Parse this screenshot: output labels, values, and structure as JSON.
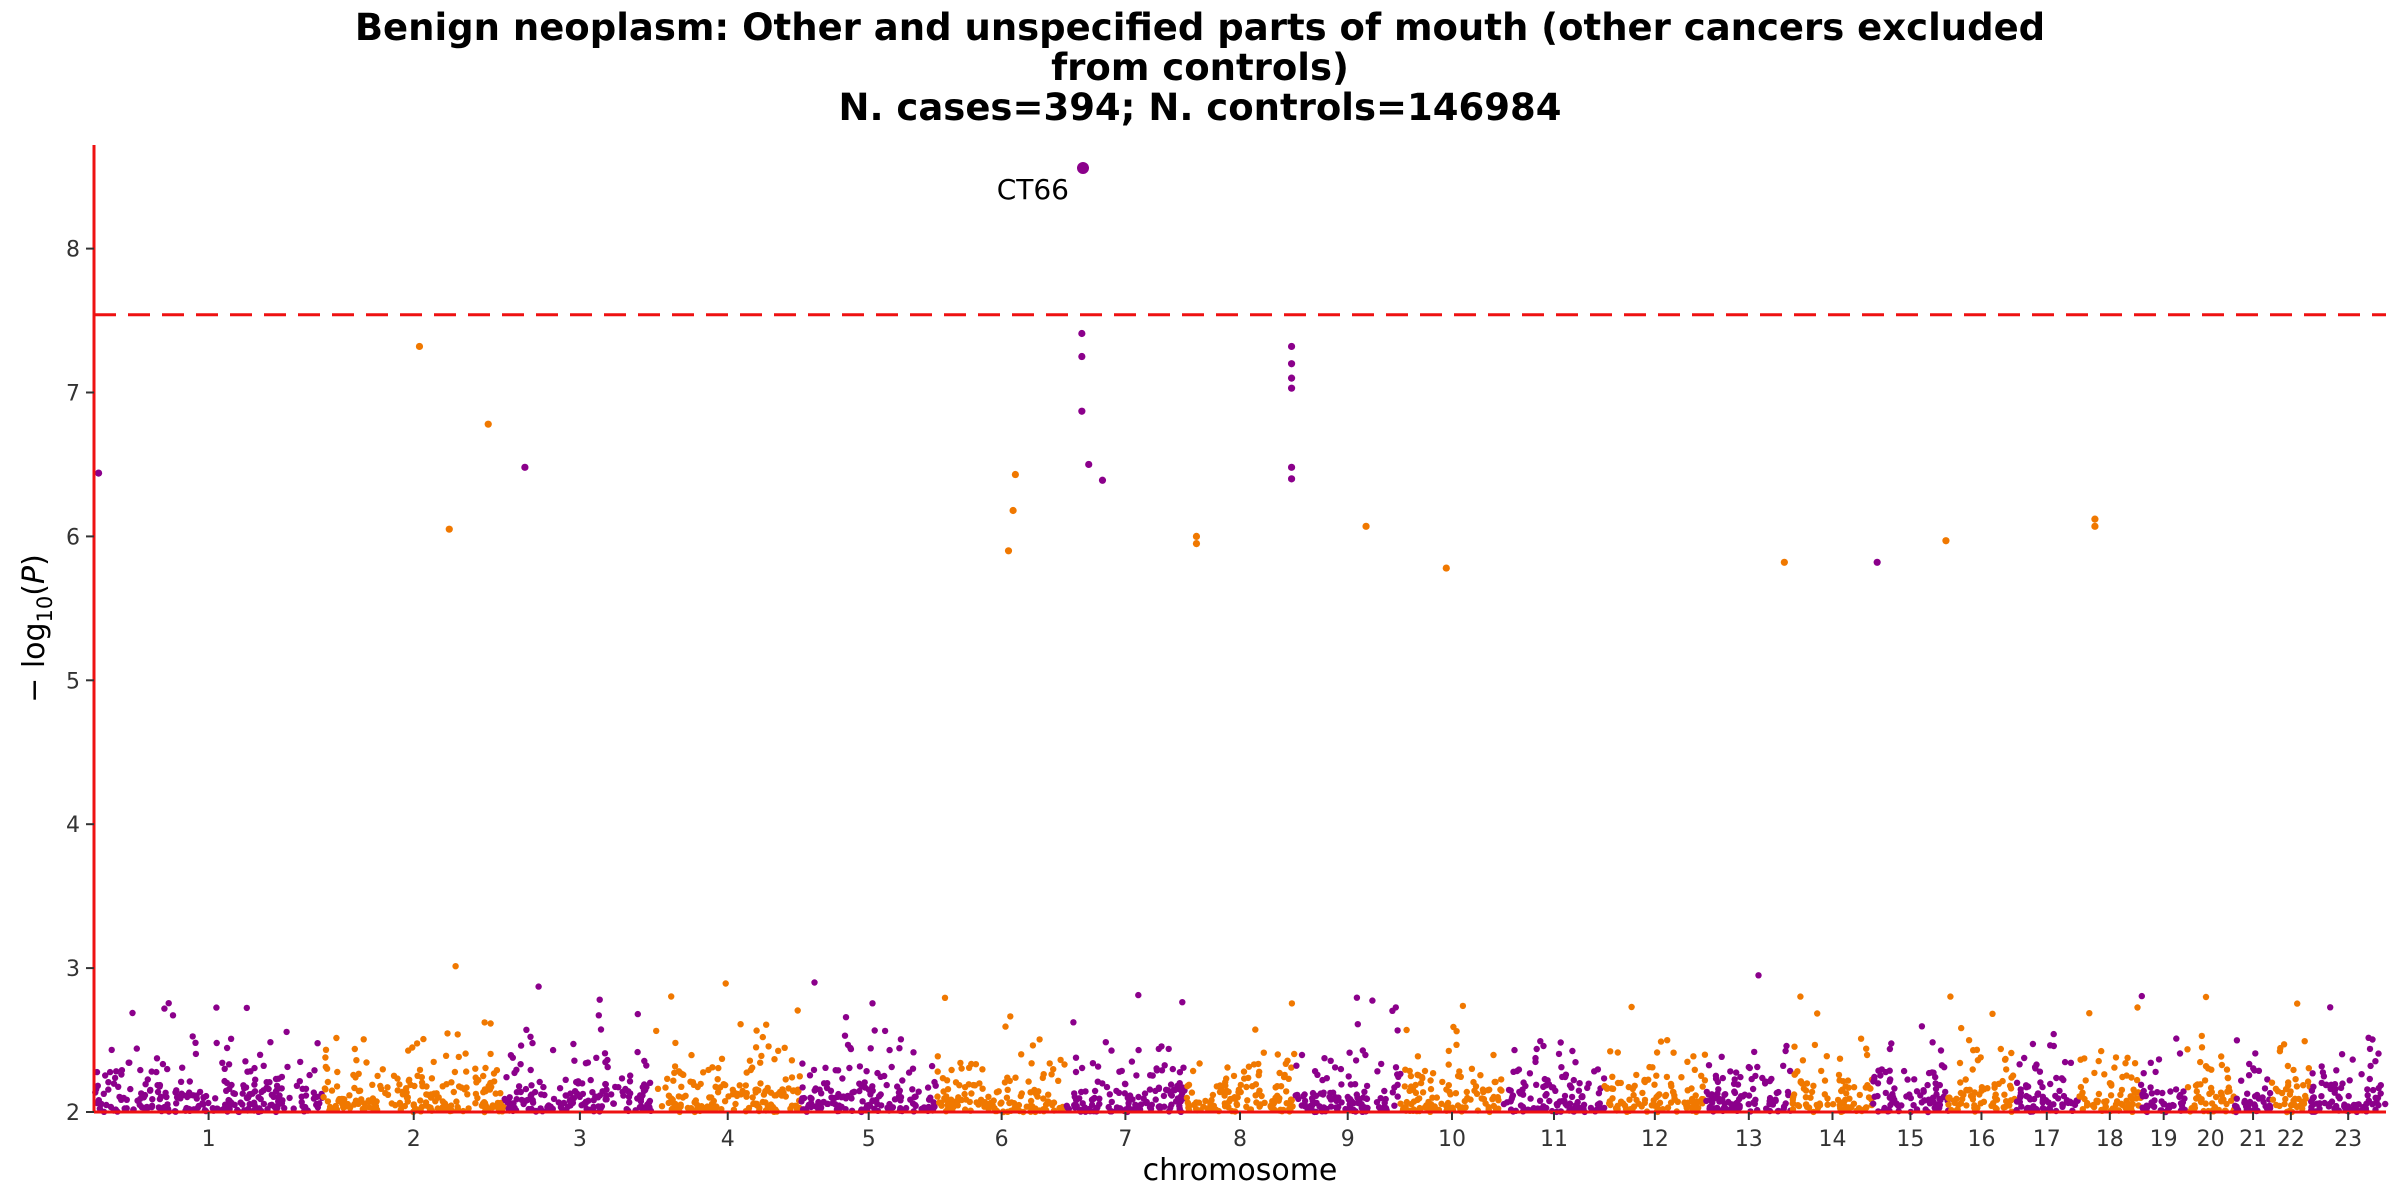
{
  "title": {
    "lines": [
      "Benign neoplasm: Other and unspecified parts of mouth (other cancers excluded",
      "from controls)",
      "N. cases=394; N. controls=146984"
    ]
  },
  "chart_data": {
    "type": "scatter",
    "title": "Benign neoplasm: Other and unspecified parts of mouth (other cancers excluded from controls) N. cases=394; N. controls=146984",
    "xlabel": "chromosome",
    "ylabel": "-log10(P)",
    "ylim": [
      2,
      8.72
    ],
    "yticks": [
      2,
      3,
      4,
      5,
      6,
      7,
      8
    ],
    "significance_threshold": 7.54,
    "colors": {
      "odd": "#8b008b",
      "even": "#f07800",
      "threshold": "#ee1111",
      "axis": "#ee1111"
    },
    "chromosomes": [
      {
        "label": "1",
        "start": 0,
        "end": 0.1
      },
      {
        "label": "2",
        "start": 0.1,
        "end": 0.179
      },
      {
        "label": "3",
        "start": 0.179,
        "end": 0.245
      },
      {
        "label": "4",
        "start": 0.245,
        "end": 0.308
      },
      {
        "label": "5",
        "start": 0.308,
        "end": 0.368
      },
      {
        "label": "6",
        "start": 0.368,
        "end": 0.424
      },
      {
        "label": "7",
        "start": 0.424,
        "end": 0.476
      },
      {
        "label": "8",
        "start": 0.476,
        "end": 0.524
      },
      {
        "label": "9",
        "start": 0.524,
        "end": 0.57
      },
      {
        "label": "10",
        "start": 0.57,
        "end": 0.615
      },
      {
        "label": "11",
        "start": 0.615,
        "end": 0.659
      },
      {
        "label": "12",
        "start": 0.659,
        "end": 0.703
      },
      {
        "label": "13",
        "start": 0.703,
        "end": 0.741
      },
      {
        "label": "14",
        "start": 0.741,
        "end": 0.776
      },
      {
        "label": "15",
        "start": 0.776,
        "end": 0.809
      },
      {
        "label": "16",
        "start": 0.809,
        "end": 0.838
      },
      {
        "label": "17",
        "start": 0.838,
        "end": 0.866
      },
      {
        "label": "18",
        "start": 0.866,
        "end": 0.893
      },
      {
        "label": "19",
        "start": 0.893,
        "end": 0.913
      },
      {
        "label": "20",
        "start": 0.913,
        "end": 0.934
      },
      {
        "label": "21",
        "start": 0.934,
        "end": 0.95
      },
      {
        "label": "22",
        "start": 0.95,
        "end": 0.967
      },
      {
        "label": "23",
        "start": 0.967,
        "end": 1.0
      }
    ],
    "top_hits": [
      {
        "chrom": "1",
        "x": 0.002,
        "y": 6.44
      },
      {
        "chrom": "2",
        "x": 0.142,
        "y": 7.32
      },
      {
        "chrom": "2",
        "x": 0.155,
        "y": 6.05
      },
      {
        "chrom": "2",
        "x": 0.172,
        "y": 6.78
      },
      {
        "chrom": "3",
        "x": 0.188,
        "y": 6.48
      },
      {
        "chrom": "6",
        "x": 0.402,
        "y": 6.43
      },
      {
        "chrom": "6",
        "x": 0.401,
        "y": 6.18
      },
      {
        "chrom": "6",
        "x": 0.399,
        "y": 5.9
      },
      {
        "chrom": "7",
        "x": 0.44,
        "y": 6.39
      },
      {
        "chrom": "7",
        "x": 0.4315,
        "y": 8.56,
        "label": "CT66"
      },
      {
        "chrom": "7",
        "x": 0.431,
        "y": 7.41
      },
      {
        "chrom": "7",
        "x": 0.431,
        "y": 7.25
      },
      {
        "chrom": "7",
        "x": 0.431,
        "y": 6.87
      },
      {
        "chrom": "7",
        "x": 0.434,
        "y": 6.5
      },
      {
        "chrom": "8",
        "x": 0.481,
        "y": 6.0
      },
      {
        "chrom": "8",
        "x": 0.481,
        "y": 5.95
      },
      {
        "chrom": "9",
        "x": 0.5225,
        "y": 7.32
      },
      {
        "chrom": "9",
        "x": 0.5225,
        "y": 7.2
      },
      {
        "chrom": "9",
        "x": 0.5225,
        "y": 7.1
      },
      {
        "chrom": "9",
        "x": 0.5225,
        "y": 7.03
      },
      {
        "chrom": "9",
        "x": 0.5225,
        "y": 6.48
      },
      {
        "chrom": "9",
        "x": 0.5225,
        "y": 6.4
      },
      {
        "chrom": "10",
        "x": 0.555,
        "y": 6.07
      },
      {
        "chrom": "10",
        "x": 0.59,
        "y": 5.78
      },
      {
        "chrom": "14",
        "x": 0.7375,
        "y": 5.82
      },
      {
        "chrom": "15",
        "x": 0.778,
        "y": 5.82
      },
      {
        "chrom": "16",
        "x": 0.808,
        "y": 5.97
      },
      {
        "chrom": "18",
        "x": 0.873,
        "y": 6.12
      },
      {
        "chrom": "18",
        "x": 0.873,
        "y": 6.07
      }
    ]
  }
}
